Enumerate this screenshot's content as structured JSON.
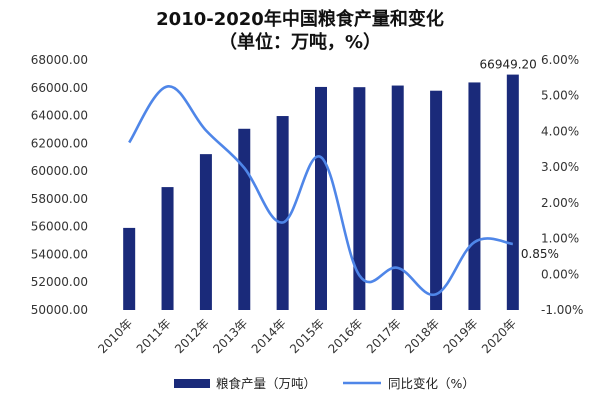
{
  "chart_data": {
    "type": "bar+line",
    "title": "2010-2020年中国粮食产量和变化",
    "subtitle": "（单位：万吨，%）",
    "categories": [
      "2010年",
      "2011年",
      "2012年",
      "2013年",
      "2014年",
      "2015年",
      "2016年",
      "2017年",
      "2018年",
      "2019年",
      "2020年"
    ],
    "series": [
      {
        "name": "粮食产量（万吨）",
        "type": "bar",
        "axis": "left",
        "color": "#1a2a7a",
        "values": [
          55911.3,
          58849.3,
          61222.6,
          63048.2,
          63964.8,
          66060.3,
          66043.5,
          66160.7,
          65789.2,
          66384.3,
          66949.2
        ]
      },
      {
        "name": "同比变化（%）",
        "type": "line",
        "axis": "right",
        "color": "#4f86e8",
        "values": [
          3.69,
          5.26,
          4.03,
          2.98,
          1.45,
          3.28,
          -0.03,
          0.18,
          -0.56,
          0.9,
          0.85
        ]
      }
    ],
    "y_left": {
      "min": 50000,
      "max": 68000,
      "step": 2000,
      "tick_labels": [
        "50000.00",
        "52000.00",
        "54000.00",
        "56000.00",
        "58000.00",
        "60000.00",
        "62000.00",
        "64000.00",
        "66000.00",
        "68000.00"
      ]
    },
    "y_right": {
      "min": -1,
      "max": 6,
      "step": 1,
      "tick_labels": [
        "-1.00%",
        "0.00%",
        "1.00%",
        "2.00%",
        "3.00%",
        "4.00%",
        "5.00%",
        "6.00%"
      ]
    },
    "data_labels": {
      "bar_last": "66949.20",
      "line_last": "0.85%"
    },
    "legend": {
      "position": "bottom",
      "items": [
        "粮食产量（万吨）",
        "同比变化（%）"
      ]
    },
    "grid": false
  }
}
